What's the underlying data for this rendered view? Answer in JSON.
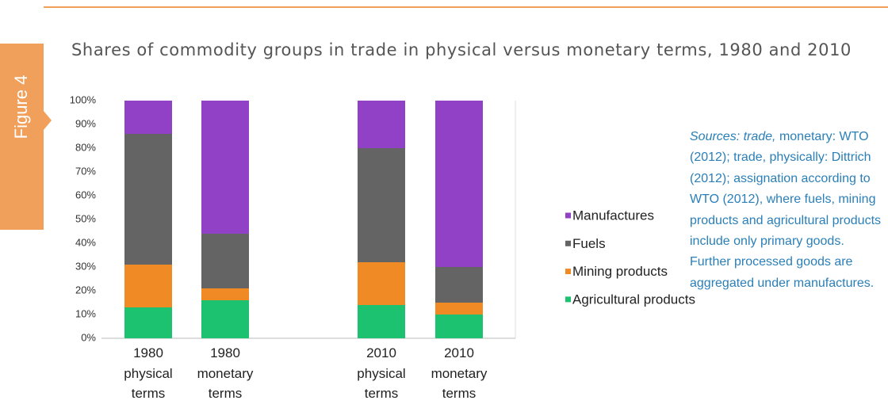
{
  "figure_label": "Figure 4",
  "chart_data": {
    "type": "stacked_bar",
    "title": "Shares of commodity groups in trade in physical versus monetary terms, 1980 and 2010",
    "categories": [
      "1980 physical terms",
      "1980 monetary terms",
      "2010 physical terms",
      "2010 monetary terms"
    ],
    "series": [
      {
        "name": "Agricultural products",
        "color": "#1cc270",
        "values": [
          13,
          16,
          14,
          10
        ]
      },
      {
        "name": "Mining products",
        "color": "#f08a24",
        "values": [
          18,
          5,
          18,
          5
        ]
      },
      {
        "name": "Fuels",
        "color": "#646464",
        "values": [
          55,
          23,
          48,
          15
        ]
      },
      {
        "name": "Manufactures",
        "color": "#9141c6",
        "values": [
          14,
          56,
          20,
          70
        ]
      }
    ],
    "ylim": [
      0,
      100
    ],
    "yticks": [
      {
        "value": 0,
        "label": "0%"
      },
      {
        "value": 10,
        "label": "10%"
      },
      {
        "value": 20,
        "label": "20%"
      },
      {
        "value": 30,
        "label": "30%"
      },
      {
        "value": 40,
        "label": "40%"
      },
      {
        "value": 50,
        "label": "50%"
      },
      {
        "value": 60,
        "label": "60%"
      },
      {
        "value": 70,
        "label": "70%"
      },
      {
        "value": 80,
        "label": "80%"
      },
      {
        "value": 90,
        "label": "90%"
      },
      {
        "value": 100,
        "label": "100%"
      }
    ],
    "grid": false,
    "legend": "right"
  },
  "note": {
    "italic": "Sources: trade,",
    "text": "monetary: WTO (2012); trade, physically: Dittrich (2012); assignation according to WTO (2012), where fuels, mining products and agricultural products include only primary goods. Further processed goods are aggregated under manufactures."
  }
}
